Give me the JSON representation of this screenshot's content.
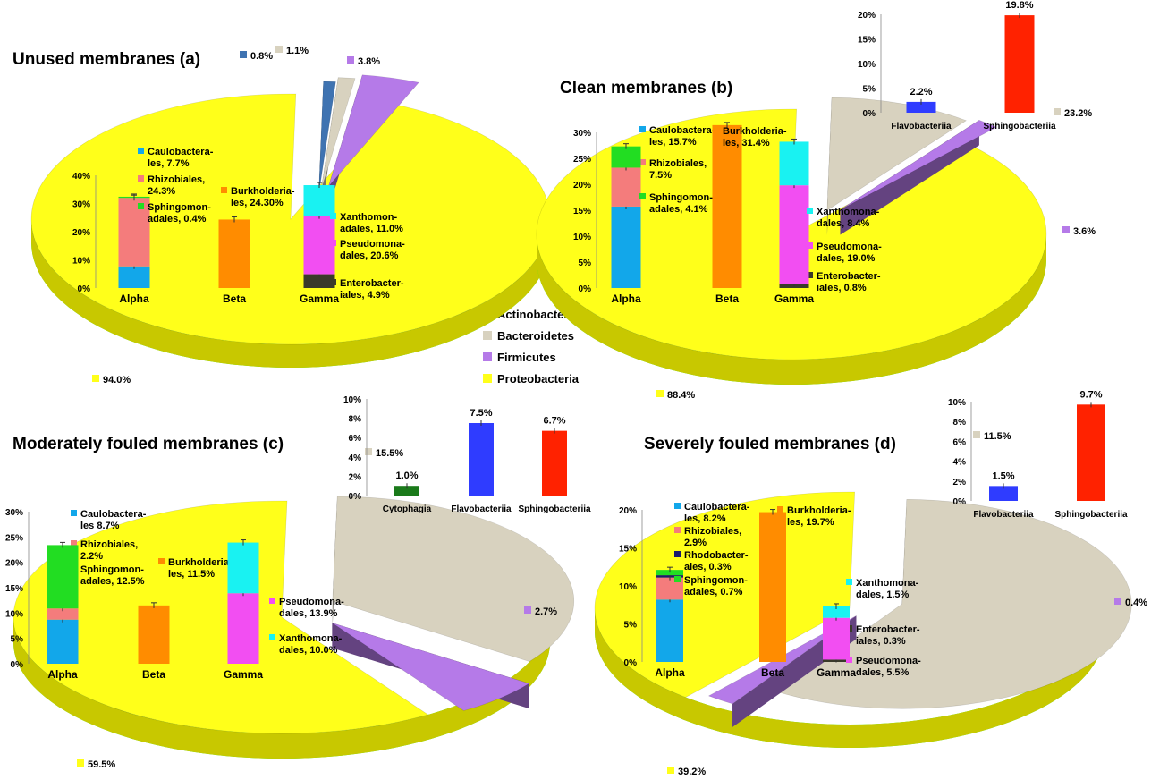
{
  "colors": {
    "actinobacteria": "#3f73b1",
    "bacteroidetes": "#d8d2bf",
    "firmicutes": "#b57ae8",
    "proteobacteria": "#ffff1a",
    "sphingomonadales": "#22dd22",
    "rhodobacterales": "#1a1a6e",
    "rhizobiales": "#f47c7c",
    "caulobacterales": "#12a7ea",
    "burkholderiales": "#ff8c00",
    "xanthomonadales": "#19f2f2",
    "pseudomonadales": "#f24ef2",
    "enterobacteriales": "#3a3a2a",
    "cytophagia": "#1a7a1a",
    "flavobacteriia": "#2f3cff",
    "sphingobacteriia": "#ff2200"
  },
  "legend": [
    {
      "label": "Actinobacteria",
      "color_key": "actinobacteria"
    },
    {
      "label": "Bacteroidetes",
      "color_key": "bacteroidetes"
    },
    {
      "label": "Firmicutes",
      "color_key": "firmicutes"
    },
    {
      "label": "Proteobacteria",
      "color_key": "proteobacteria"
    }
  ],
  "chart_data": [
    {
      "type": "pie",
      "title": "Unused membranes (a)",
      "slices": [
        {
          "name": "Actinobacteria",
          "value": 0.8,
          "label": "0.8%"
        },
        {
          "name": "Bacteroidetes",
          "value": 1.1,
          "label": "1.1%"
        },
        {
          "name": "Firmicutes",
          "value": 3.8,
          "label": "3.8%"
        },
        {
          "name": "Proteobacteria",
          "value": 94.0,
          "label": "94.0%"
        }
      ],
      "inset": {
        "type": "bar",
        "stacked": true,
        "categories": [
          "Alpha",
          "Beta",
          "Gamma"
        ],
        "ylim": [
          0,
          40
        ],
        "yticks": [
          "0%",
          "10%",
          "20%",
          "30%",
          "40%"
        ],
        "series": [
          {
            "name": "Caulobacterales",
            "values": [
              7.7,
              0,
              0
            ],
            "color_key": "caulobacterales",
            "label": "Caulobactera-\nles, 7.7%"
          },
          {
            "name": "Rhizobiales",
            "values": [
              24.3,
              0,
              0
            ],
            "color_key": "rhizobiales",
            "label": "Rhizobiales,\n24.3%"
          },
          {
            "name": "Sphingomonadales",
            "values": [
              0.4,
              0,
              0
            ],
            "color_key": "sphingomonadales",
            "label": "Sphingomon-\nadales, 0.4%"
          },
          {
            "name": "Burkholderiales",
            "values": [
              0,
              24.3,
              0
            ],
            "color_key": "burkholderiales",
            "label": "Burkholderia-\nles, 24.30%"
          },
          {
            "name": "Enterobacteriales",
            "values": [
              0,
              0,
              4.9
            ],
            "color_key": "enterobacteriales",
            "label": "Enterobacter-\niales, 4.9%"
          },
          {
            "name": "Pseudomonadales",
            "values": [
              0,
              0,
              20.6
            ],
            "color_key": "pseudomonadales",
            "label": "Pseudomona-\ndales, 20.6%"
          },
          {
            "name": "Xanthomonadales",
            "values": [
              0,
              0,
              11.0
            ],
            "color_key": "xanthomonadales",
            "label": "Xanthomon-\nadales, 11.0%"
          }
        ]
      }
    },
    {
      "type": "pie",
      "title": "Clean membranes (b)",
      "slices": [
        {
          "name": "Bacteroidetes",
          "value": 23.2,
          "label": "23.2%"
        },
        {
          "name": "Firmicutes",
          "value": 3.6,
          "label": "3.6%"
        },
        {
          "name": "Proteobacteria",
          "value": 88.4,
          "label": "88.4%"
        }
      ],
      "inset": {
        "type": "bar",
        "stacked": true,
        "categories": [
          "Alpha",
          "Beta",
          "Gamma"
        ],
        "ylim": [
          0,
          30
        ],
        "yticks": [
          "0%",
          "5%",
          "10%",
          "15%",
          "20%",
          "25%",
          "30%"
        ],
        "series": [
          {
            "name": "Caulobacterales",
            "values": [
              15.7,
              0,
              0
            ],
            "color_key": "caulobacterales",
            "label": "Caulobactera-\nles, 15.7%"
          },
          {
            "name": "Rhizobiales",
            "values": [
              7.5,
              0,
              0
            ],
            "color_key": "rhizobiales",
            "label": "Rhizobiales,\n7.5%"
          },
          {
            "name": "Sphingomonadales",
            "values": [
              4.1,
              0,
              0
            ],
            "color_key": "sphingomonadales",
            "label": "Sphingomon-\nadales, 4.1%"
          },
          {
            "name": "Burkholderiales",
            "values": [
              0,
              31.4,
              0
            ],
            "color_key": "burkholderiales",
            "label": "Burkholderia-\nles, 31.4%"
          },
          {
            "name": "Enterobacteriales",
            "values": [
              0,
              0,
              0.8
            ],
            "color_key": "enterobacteriales",
            "label": "Enterobacter-\niales, 0.8%"
          },
          {
            "name": "Pseudomonadales",
            "values": [
              0,
              0,
              19.0
            ],
            "color_key": "pseudomonadales",
            "label": "Pseudomona-\ndales, 19.0%"
          },
          {
            "name": "Xanthomonadales",
            "values": [
              0,
              0,
              8.4
            ],
            "color_key": "xanthomonadales",
            "label": "Xanthomona-\ndales, 8.4%"
          }
        ]
      },
      "inset2": {
        "type": "bar",
        "categories": [
          "Flavobacteriia",
          "Sphingobacteriia"
        ],
        "values": [
          2.2,
          19.8
        ],
        "value_labels": [
          "2.2%",
          "19.8%"
        ],
        "color_keys": [
          "flavobacteriia",
          "sphingobacteriia"
        ],
        "ylim": [
          0,
          20
        ],
        "yticks": [
          "0%",
          "5%",
          "10%",
          "15%",
          "20%"
        ]
      }
    },
    {
      "type": "pie",
      "title": "Moderately fouled membranes (c)",
      "slices": [
        {
          "name": "Bacteroidetes",
          "value": 15.5,
          "label": "15.5%"
        },
        {
          "name": "Firmicutes",
          "value": 2.7,
          "label": "2.7%"
        },
        {
          "name": "Proteobacteria",
          "value": 59.5,
          "label": "59.5%"
        }
      ],
      "inset": {
        "type": "bar",
        "stacked": true,
        "categories": [
          "Alpha",
          "Beta",
          "Gamma"
        ],
        "ylim": [
          0,
          30
        ],
        "yticks": [
          "0%",
          "5%",
          "10%",
          "15%",
          "20%",
          "25%",
          "30%"
        ],
        "series": [
          {
            "name": "Caulobacterales",
            "values": [
              8.7,
              0,
              0
            ],
            "color_key": "caulobacterales",
            "label": "Caulobactera-\nles  8.7%"
          },
          {
            "name": "Rhizobiales",
            "values": [
              2.2,
              0,
              0
            ],
            "color_key": "rhizobiales",
            "label": "Rhizobiales,\n2.2%"
          },
          {
            "name": "Sphingomonadales",
            "values": [
              12.5,
              0,
              0
            ],
            "color_key": "sphingomonadales",
            "label": "Sphingomon-\nadales, 12.5%"
          },
          {
            "name": "Burkholderiales",
            "values": [
              0,
              11.5,
              0
            ],
            "color_key": "burkholderiales",
            "label": "Burkholderia-\nles, 11.5%"
          },
          {
            "name": "Pseudomonadales",
            "values": [
              0,
              0,
              13.9
            ],
            "color_key": "pseudomonadales",
            "label": "Pseudomona-\ndales, 13.9%"
          },
          {
            "name": "Xanthomonadales",
            "values": [
              0,
              0,
              10.0
            ],
            "color_key": "xanthomonadales",
            "label": "Xanthomona-\ndales, 10.0%"
          }
        ]
      },
      "inset2": {
        "type": "bar",
        "categories": [
          "Cytophagia",
          "Flavobacteriia",
          "Sphingobacteriia"
        ],
        "values": [
          1.0,
          7.5,
          6.7
        ],
        "value_labels": [
          "1.0%",
          "7.5%",
          "6.7%"
        ],
        "color_keys": [
          "cytophagia",
          "flavobacteriia",
          "sphingobacteriia"
        ],
        "ylim": [
          0,
          10
        ],
        "yticks": [
          "0%",
          "2%",
          "4%",
          "6%",
          "8%",
          "10%"
        ]
      }
    },
    {
      "type": "pie",
      "title": "Severely fouled membranes (d)",
      "slices": [
        {
          "name": "Bacteroidetes",
          "value": 11.5,
          "label": "11.5%"
        },
        {
          "name": "Firmicutes",
          "value": 0.4,
          "label": "0.4%"
        },
        {
          "name": "Proteobacteria",
          "value": 39.2,
          "label": "39.2%"
        }
      ],
      "inset": {
        "type": "bar",
        "stacked": true,
        "categories": [
          "Alpha",
          "Beta",
          "Gamma"
        ],
        "ylim": [
          0,
          20
        ],
        "yticks": [
          "0%",
          "5%",
          "10%",
          "15%",
          "20%"
        ],
        "series": [
          {
            "name": "Caulobacterales",
            "values": [
              8.2,
              0,
              0
            ],
            "color_key": "caulobacterales",
            "label": "Caulobactera-\nles, 8.2%"
          },
          {
            "name": "Rhizobiales",
            "values": [
              2.9,
              0,
              0
            ],
            "color_key": "rhizobiales",
            "label": "Rhizobiales,\n2.9%"
          },
          {
            "name": "Rhodobacterales",
            "values": [
              0.3,
              0,
              0
            ],
            "color_key": "rhodobacterales",
            "label": "Rhodobacter-\nales, 0.3%"
          },
          {
            "name": "Sphingomonadales",
            "values": [
              0.7,
              0,
              0
            ],
            "color_key": "sphingomonadales",
            "label": "Sphingomon-\nadales, 0.7%"
          },
          {
            "name": "Burkholderiales",
            "values": [
              0,
              19.7,
              0
            ],
            "color_key": "burkholderiales",
            "label": "Burkholderia-\nles, 19.7%"
          },
          {
            "name": "Enterobacteriales",
            "values": [
              0,
              0,
              0.3
            ],
            "color_key": "enterobacteriales",
            "label": "Enterobacter-\niales, 0.3%"
          },
          {
            "name": "Pseudomonadales",
            "values": [
              0,
              0,
              5.5
            ],
            "color_key": "pseudomonadales",
            "label": "Pseudomona-\ndales, 5.5%"
          },
          {
            "name": "Xanthomonadales",
            "values": [
              0,
              0,
              1.5
            ],
            "color_key": "xanthomonadales",
            "label": "Xanthomona-\ndales, 1.5%"
          }
        ]
      },
      "inset2": {
        "type": "bar",
        "categories": [
          "Flavobacteriia",
          "Sphingobacteriia"
        ],
        "values": [
          1.5,
          9.7
        ],
        "value_labels": [
          "1.5%",
          "9.7%"
        ],
        "color_keys": [
          "flavobacteriia",
          "sphingobacteriia"
        ],
        "ylim": [
          0,
          10
        ],
        "yticks": [
          "0%",
          "2%",
          "4%",
          "6%",
          "8%",
          "10%"
        ]
      }
    }
  ]
}
